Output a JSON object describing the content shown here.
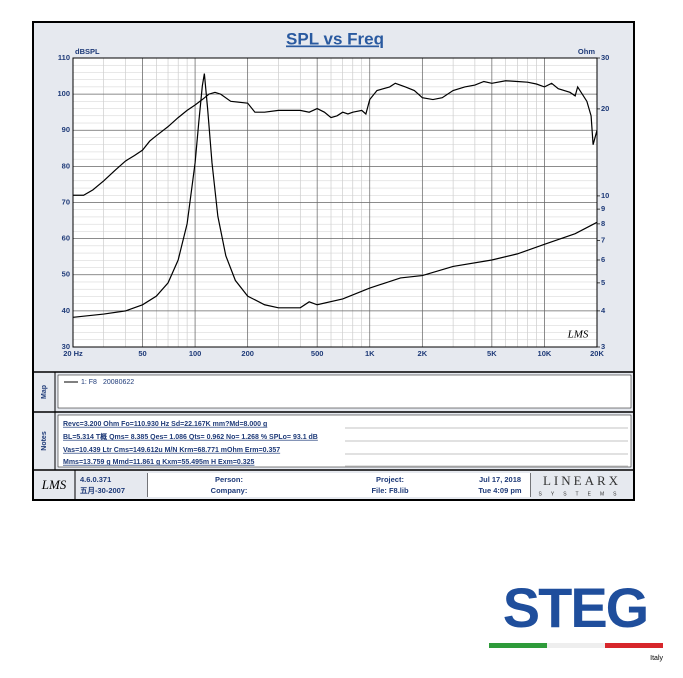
{
  "chart_data": {
    "type": "line",
    "title": "SPL vs Freq",
    "ylabel": "dBSPL",
    "y2label": "Ohm",
    "watermark": "LMS",
    "xscale": "log",
    "y2scale": "log",
    "grid": true,
    "xlim": [
      20,
      20000
    ],
    "xticks": [
      {
        "value": 20,
        "label": "20 Hz"
      },
      50,
      100,
      200,
      500,
      {
        "value": 1000,
        "label": "1K"
      },
      {
        "value": 2000,
        "label": "2K"
      },
      {
        "value": 5000,
        "label": "5K"
      },
      {
        "value": 10000,
        "label": "10K"
      },
      {
        "value": 20000,
        "label": "20K"
      }
    ],
    "ylim": [
      30,
      110
    ],
    "yticks": [
      30,
      40,
      50,
      60,
      70,
      80,
      90,
      100,
      110
    ],
    "y2lim": [
      3,
      30
    ],
    "y2ticks": [
      3,
      4,
      5,
      6,
      7,
      8,
      9,
      10,
      20,
      30
    ],
    "series": [
      {
        "color": "#000000",
        "axis": "y",
        "x": [
          20,
          23,
          26,
          30,
          35,
          40,
          45,
          50,
          55,
          60,
          70,
          80,
          90,
          100,
          110,
          120,
          130,
          140,
          160,
          200,
          220,
          250,
          300,
          400,
          450,
          500,
          550,
          600,
          650,
          700,
          750,
          800,
          900,
          950,
          1000,
          1100,
          1300,
          1400,
          1600,
          1800,
          2000,
          2300,
          2600,
          3000,
          3500,
          4000,
          4500,
          5000,
          6000,
          7000,
          8000,
          9000,
          10000,
          11000,
          12000,
          14000,
          15000,
          15500,
          17500,
          18500,
          19000,
          20000
        ],
        "values": [
          72,
          72,
          73.5,
          76,
          79,
          81.5,
          83,
          84.5,
          87,
          88.5,
          91,
          93.5,
          95.5,
          97,
          98.5,
          100,
          100.5,
          100,
          98,
          97.5,
          95,
          95,
          95.5,
          95.5,
          95,
          96,
          95,
          93.5,
          94,
          95,
          94.5,
          95,
          95.5,
          94.5,
          98.5,
          101,
          102,
          103,
          102,
          101,
          99,
          98.5,
          99,
          101,
          102,
          102.5,
          103.5,
          103,
          103.7,
          103.5,
          103.3,
          102.8,
          102,
          103,
          101.5,
          100.5,
          99.5,
          102,
          98,
          94,
          86,
          90
        ]
      },
      {
        "color": "#000000",
        "axis": "y2",
        "x": [
          20,
          30,
          40,
          50,
          60,
          70,
          80,
          90,
          100,
          105,
          110,
          113,
          118,
          125,
          135,
          150,
          170,
          200,
          250,
          300,
          400,
          450,
          500,
          700,
          1000,
          1500,
          2000,
          3000,
          5000,
          7000,
          10000,
          15000,
          20000
        ],
        "values": [
          3.8,
          3.9,
          4.0,
          4.2,
          4.5,
          5.0,
          6.0,
          8.0,
          13,
          18,
          24,
          26.5,
          20,
          13,
          8.5,
          6.2,
          5.1,
          4.5,
          4.2,
          4.1,
          4.1,
          4.3,
          4.2,
          4.4,
          4.8,
          5.2,
          5.3,
          5.7,
          6.0,
          6.3,
          6.8,
          7.4,
          8.1
        ]
      }
    ]
  },
  "map": {
    "label": "Map",
    "legend": "1: F8",
    "date": "20080622"
  },
  "notes": {
    "label": "Notes",
    "rows": [
      "Revc=3.200 Ohm  Fo=110.930 Hz  Sd=22.167K mm?Md=8.000 g",
      "BL=5.314 T概  Qms= 8.385  Qes= 1.086  Qts= 0.962  No= 1.268 %  SPLo= 93.1 dB",
      "Vas=10.439 Ltr  Cms=149.612u M/N  Krm=68.771 mOhm  Erm=0.357",
      "Mms=13.759 g  Mmd=11.861 g  Kxm=55.495m H  Exm=0.325"
    ]
  },
  "footer": {
    "logo": "LMS",
    "version": "4.6.0.371",
    "build_date": "五月-30-2007",
    "person": "Person:",
    "company": "Company:",
    "project": "Project:",
    "file": "File: F8.lib",
    "date": "Jul 17, 2018",
    "time": "Tue  4:09 pm",
    "brand": "LINEARX",
    "brand_sub": "SYSTEMS"
  },
  "logo": {
    "name": "STEG",
    "country": "Italy"
  }
}
